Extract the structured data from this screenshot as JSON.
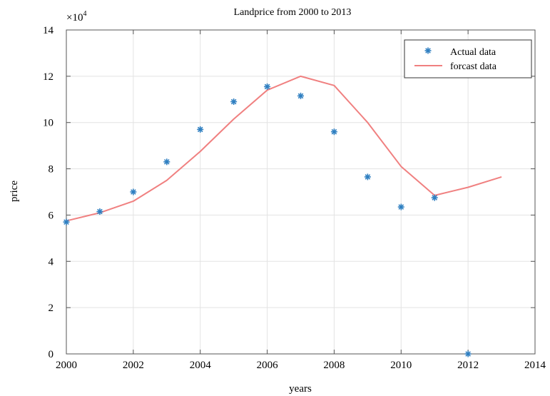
{
  "chart_data": {
    "type": "line",
    "title": "Landprice from 2000 to 2013",
    "xlabel": "years",
    "ylabel": "price",
    "exponent_base": "×10",
    "exponent_power": "4",
    "xlim": [
      2000,
      2014
    ],
    "ylim": [
      0,
      14
    ],
    "xticks": [
      "2000",
      "2002",
      "2004",
      "2006",
      "2008",
      "2010",
      "2012",
      "2014"
    ],
    "yticks": [
      "0",
      "2",
      "4",
      "6",
      "8",
      "10",
      "12",
      "14"
    ],
    "grid": true,
    "legend_position": "top-right",
    "series": [
      {
        "name": "Actual data",
        "style": "markers",
        "color": "#2f7fc1",
        "x": [
          2000,
          2001,
          2002,
          2003,
          2004,
          2005,
          2006,
          2007,
          2008,
          2009,
          2010,
          2011,
          2012
        ],
        "y": [
          5.7,
          6.15,
          7.0,
          8.3,
          9.7,
          10.9,
          11.55,
          11.15,
          9.6,
          7.65,
          6.35,
          6.75,
          0.0
        ]
      },
      {
        "name": "forcast data",
        "style": "line",
        "color": "#f08080",
        "x": [
          2000,
          2001,
          2002,
          2003,
          2004,
          2005,
          2006,
          2007,
          2008,
          2009,
          2010,
          2011,
          2012,
          2013
        ],
        "y": [
          5.75,
          6.1,
          6.6,
          7.5,
          8.75,
          10.15,
          11.4,
          12.0,
          11.6,
          10.0,
          8.1,
          6.85,
          7.2,
          7.65
        ]
      }
    ]
  }
}
